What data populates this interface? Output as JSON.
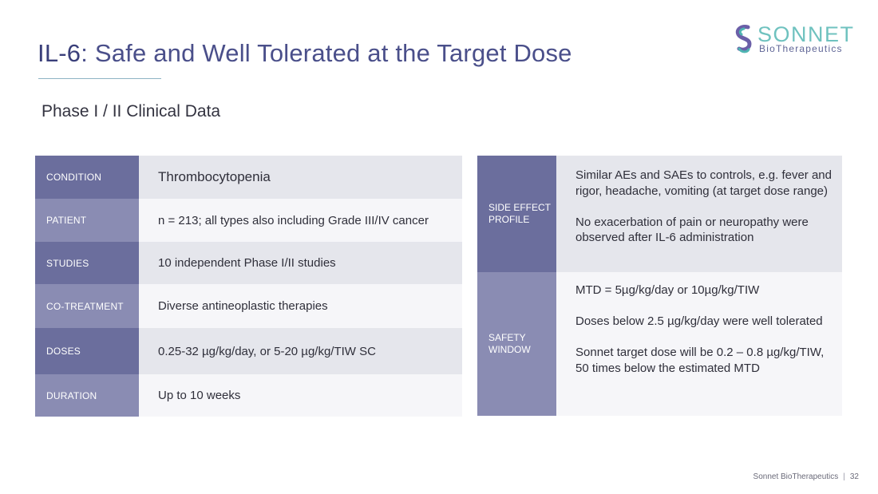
{
  "title": {
    "highlight": "IL-6",
    "rest": ": Safe and Well Tolerated at the Target Dose"
  },
  "logo": {
    "name": "SONNET",
    "sub": "BioTherapeutics"
  },
  "subtitle": "Phase I / II Clinical Data",
  "left_table": [
    {
      "label": "CONDITION",
      "value": "Thrombocytopenia"
    },
    {
      "label": "PATIENT",
      "value": "n = 213; all types also including Grade III/IV cancer"
    },
    {
      "label": "STUDIES",
      "value": "10 independent Phase I/II studies"
    },
    {
      "label": "CO-TREATMENT",
      "value": "Diverse antineoplastic therapies"
    },
    {
      "label": "DOSES",
      "value": "0.25-32 µg/kg/day, or 5-20 µg/kg/TIW SC"
    },
    {
      "label": "DURATION",
      "value": "Up to 10 weeks"
    }
  ],
  "right_table": [
    {
      "label": "SIDE EFFECT PROFILE",
      "paragraphs": [
        "Similar AEs and SAEs to controls, e.g. fever and rigor, headache, vomiting (at target dose range)",
        "No exacerbation of pain or neuropathy were observed after IL-6 administration"
      ]
    },
    {
      "label": "SAFETY WINDOW",
      "paragraphs": [
        "MTD = 5µg/kg/day or 10µg/kg/TIW",
        "Doses below 2.5 µg/kg/day were well tolerated",
        "Sonnet target dose will be 0.2 – 0.8 µg/kg/TIW, 50 times below the estimated MTD"
      ]
    }
  ],
  "footer": {
    "company": "Sonnet BioTherapeutics",
    "page": "32"
  },
  "colors": {
    "title": "#3a3f7a",
    "label_dark": "#6b6e9d",
    "label_light": "#8a8cb3",
    "value_grey": "#e5e6ec",
    "value_white": "#f6f6f9",
    "logo_teal": "#6fc2bf"
  }
}
